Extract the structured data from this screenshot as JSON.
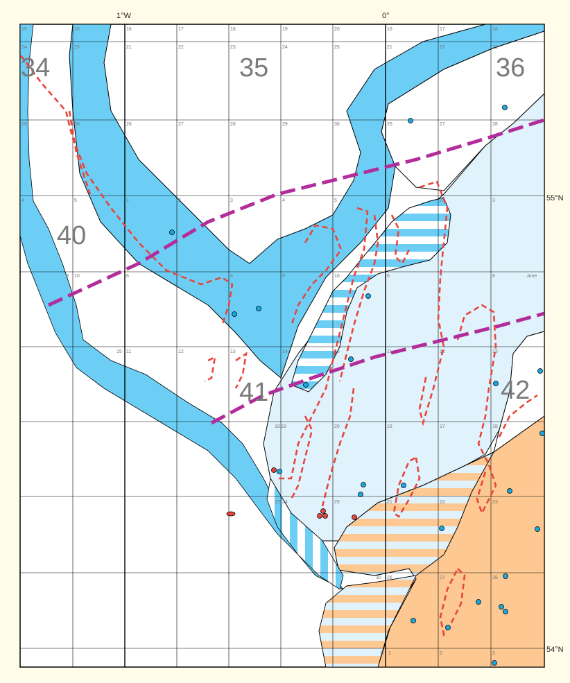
{
  "longitude_labels": [
    "1°W",
    "0°"
  ],
  "latitude_labels": [
    "55°N",
    "54°N"
  ],
  "area_labels": [
    "34",
    "35",
    "36",
    "40",
    "41",
    "42"
  ],
  "rectangle_labels": {
    "row1": [
      "19",
      "20",
      "16",
      "17",
      "18",
      "19",
      "20",
      "16",
      "17",
      "18"
    ],
    "row2": [
      "24",
      "25",
      "21",
      "22",
      "23",
      "24",
      "25",
      "21",
      "22",
      "23"
    ],
    "row3": [
      "29",
      "30",
      "26",
      "27",
      "28",
      "29",
      "30",
      "26",
      "27",
      "28"
    ],
    "row4": [
      "4",
      "5",
      "1",
      "2",
      "3",
      "4",
      "5",
      "1",
      "2",
      "3"
    ],
    "row5": [
      "9",
      "10",
      "6",
      "7",
      "8",
      "9",
      "10",
      "6",
      "7",
      "8",
      "Ame"
    ],
    "row6": [
      "15",
      "11",
      "12",
      "13",
      "14",
      "15",
      "11",
      "12",
      "13"
    ],
    "row7": [
      "18",
      "19",
      "20",
      "16",
      "17",
      "18"
    ],
    "row8": [
      "23",
      "24",
      "25",
      "21",
      "22",
      "23"
    ],
    "row9": [
      "30",
      "26",
      "27",
      "28"
    ],
    "row10": [
      "5",
      "1",
      "2",
      "3"
    ]
  },
  "colors": {
    "page_background": "#fffde9",
    "sea": "#ffffff",
    "deep_channel": "#6ccef5",
    "shallow_zone": "#e0f2fc",
    "sandy_zone": "#fdc891",
    "red_outline": "#e8453c",
    "magenta_line": "#b32d9a",
    "grid": "#000000"
  }
}
